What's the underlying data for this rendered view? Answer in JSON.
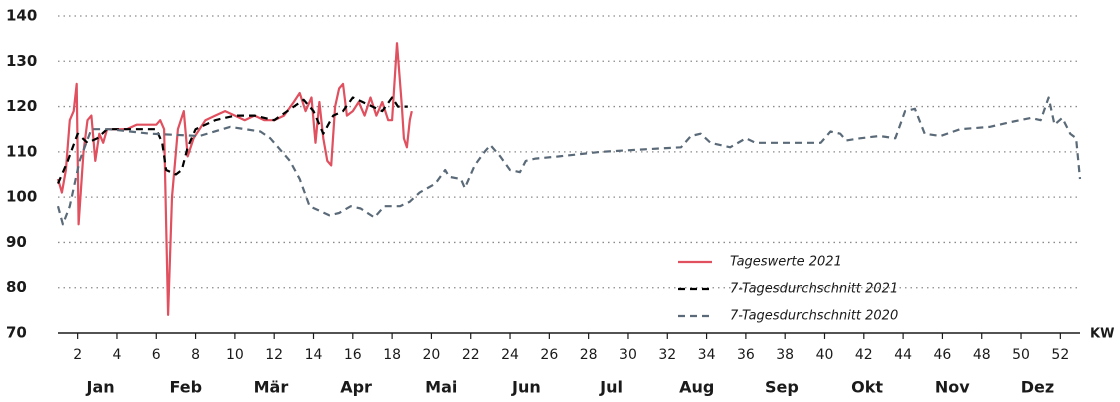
{
  "chart_data": {
    "type": "line",
    "x_label": "KW",
    "xlim": [
      1,
      53
    ],
    "xticks": [
      2,
      4,
      6,
      8,
      10,
      12,
      14,
      16,
      18,
      20,
      22,
      24,
      26,
      28,
      30,
      32,
      34,
      36,
      38,
      40,
      42,
      44,
      46,
      48,
      50,
      52
    ],
    "ylim": [
      70,
      140
    ],
    "yticks": [
      70,
      80,
      90,
      100,
      110,
      120,
      130,
      140
    ],
    "grid": true,
    "legend": "lower right",
    "months": [
      "Jan",
      "Feb",
      "Mär",
      "Apr",
      "Mai",
      "Jun",
      "Jul",
      "Aug",
      "Sep",
      "Okt",
      "Nov",
      "Dez"
    ],
    "series": [
      {
        "name": "Tageswerte 2021",
        "color": "#e0505f",
        "dash": "solid",
        "x": [
          1.0,
          1.2,
          1.4,
          1.6,
          1.8,
          1.95,
          2.05,
          2.3,
          2.5,
          2.7,
          2.9,
          3.1,
          3.3,
          3.5,
          4,
          4.5,
          5,
          5.5,
          6,
          6.2,
          6.4,
          6.6,
          6.8,
          7.1,
          7.4,
          7.6,
          7.9,
          8.5,
          9,
          9.5,
          10,
          10.5,
          11,
          11.5,
          12,
          12.5,
          13,
          13.3,
          13.6,
          13.9,
          14.1,
          14.3,
          14.5,
          14.7,
          14.9,
          15.1,
          15.3,
          15.5,
          15.7,
          16,
          16.3,
          16.6,
          16.9,
          17.2,
          17.5,
          17.8,
          18.0,
          18.25,
          18.5,
          18.6,
          18.75,
          18.9,
          19.0
        ],
        "values": [
          104,
          101,
          106,
          117,
          119,
          125,
          94,
          110,
          117,
          118,
          108,
          114,
          112,
          115,
          115,
          115,
          116,
          116,
          116,
          117,
          115,
          74,
          100,
          115,
          119,
          109,
          113,
          117,
          118,
          119,
          118,
          117,
          118,
          117,
          117,
          118,
          121,
          123,
          119,
          122,
          112,
          121,
          113,
          108,
          107,
          120,
          124,
          125,
          118,
          119,
          121,
          118,
          122,
          118,
          121,
          117,
          117,
          134,
          120,
          113,
          111,
          117,
          119
        ]
      },
      {
        "name": "7-Tagesdurchschnitt 2021",
        "color": "#000000",
        "dash": "dashed",
        "x": [
          1.0,
          1.5,
          2,
          2.5,
          3,
          3.5,
          4,
          5,
          6,
          6.3,
          6.5,
          7,
          7.3,
          7.6,
          8,
          9,
          10,
          11,
          12,
          13,
          13.5,
          14,
          14.3,
          14.5,
          15,
          15.5,
          16,
          16.5,
          17,
          17.5,
          18,
          18.3,
          18.8
        ],
        "values": [
          103,
          108,
          114,
          112,
          113,
          115,
          115,
          115,
          115,
          112,
          106,
          105,
          106,
          111,
          115,
          117,
          118,
          118,
          117,
          120,
          121.5,
          119,
          116,
          114,
          118,
          119,
          122,
          121,
          120,
          119,
          122,
          120,
          120
        ]
      },
      {
        "name": "7-Tagesdurchschnitt 2020",
        "color": "#5a6a78",
        "dash": "dashed",
        "x": [
          1.0,
          1.25,
          1.6,
          2.1,
          2.7,
          3.6,
          5.7,
          8.2,
          9.75,
          11.3,
          11.8,
          12.8,
          13.3,
          13.8,
          14.8,
          15.3,
          15.9,
          16.4,
          17.1,
          17.6,
          18.4,
          18.9,
          19.4,
          20.2,
          20.7,
          20.9,
          21.5,
          21.7,
          22.2,
          22.7,
          23.0,
          23.5,
          24.0,
          24.5,
          24.8,
          25.3,
          26.5,
          28.6,
          30.6,
          32.7,
          33.2,
          33.7,
          34.2,
          35.2,
          36.0,
          36.5,
          38.3,
          39.8,
          40.3,
          40.8,
          41.1,
          41.8,
          42.8,
          43.6,
          44.1,
          44.6,
          45.1,
          45.9,
          46.9,
          48.4,
          49.4,
          50.5,
          51.0,
          51.4,
          51.7,
          52.1,
          52.5,
          52.8,
          53.0
        ],
        "values": [
          98,
          94,
          98,
          108,
          115,
          115,
          114,
          113.5,
          115.5,
          114.5,
          113,
          108,
          104,
          98,
          96,
          96.5,
          98,
          97.5,
          95.5,
          98,
          98,
          99,
          101,
          103,
          106,
          104.5,
          104,
          102,
          107,
          110,
          111.5,
          109,
          106,
          105.5,
          108,
          108.5,
          109,
          110,
          110.5,
          111,
          113.5,
          114,
          112,
          111,
          113,
          112,
          112,
          112,
          114.5,
          114,
          112.5,
          113,
          113.5,
          113,
          119,
          119.5,
          114,
          113.5,
          115,
          115.5,
          116.5,
          117.5,
          117,
          122,
          116,
          117.5,
          114,
          113,
          104
        ]
      }
    ]
  }
}
